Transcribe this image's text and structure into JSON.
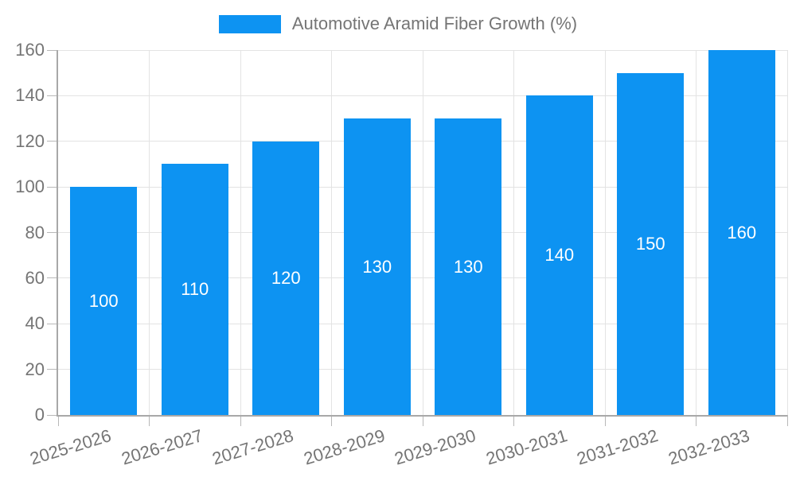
{
  "legend": {
    "label": "Automotive Aramid Fiber Growth (%)"
  },
  "chart_data": {
    "type": "bar",
    "title": "",
    "xlabel": "",
    "ylabel": "",
    "series_name": "Automotive Aramid Fiber Growth (%)",
    "categories": [
      "2025-2026",
      "2026-2027",
      "2027-2028",
      "2028-2029",
      "2029-2030",
      "2030-2031",
      "2031-2032",
      "2032-2033"
    ],
    "values": [
      100,
      110,
      120,
      130,
      130,
      140,
      150,
      160
    ],
    "bar_value_labels": [
      "100",
      "110",
      "120",
      "130",
      "130",
      "140",
      "150",
      "160"
    ],
    "ylim": [
      0,
      160
    ],
    "yticks": [
      0,
      20,
      40,
      60,
      80,
      100,
      120,
      140,
      160
    ],
    "grid": true,
    "legend_position": "top-center",
    "value_labels_inside_bars": true,
    "x_label_rotation_deg": -17
  },
  "colors": {
    "bar": "#0d93f2",
    "bar_label": "#ffffff",
    "axis_text": "#757575",
    "grid_line": "#e3e3e3",
    "axis_line": "#a8a8a8",
    "tick_line": "#b8b8b8",
    "background": "#ffffff"
  }
}
